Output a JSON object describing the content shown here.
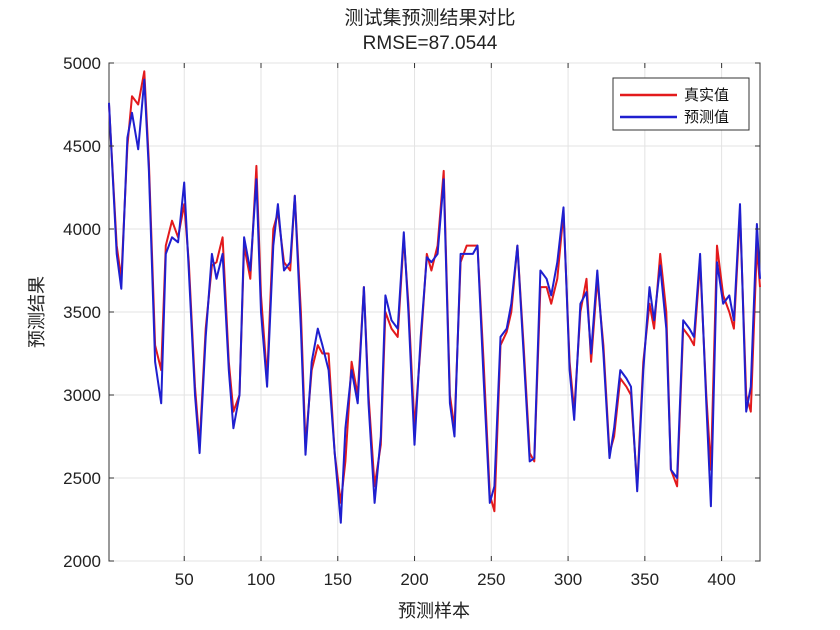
{
  "chart_data": {
    "type": "line",
    "title": "测试集预测结果对比",
    "subtitle": "RMSE=87.0544",
    "xlabel": "预测样本",
    "ylabel": "预测结果",
    "xlim": [
      1,
      425
    ],
    "ylim": [
      2000,
      5000
    ],
    "xticks": [
      50,
      100,
      150,
      200,
      250,
      300,
      350,
      400
    ],
    "yticks": [
      2000,
      2500,
      3000,
      3500,
      4000,
      4500,
      5000
    ],
    "grid": true,
    "legend_position": "top-right",
    "series": [
      {
        "name": "真实值",
        "color": "#e31a1c",
        "x": [
          1,
          6,
          9,
          13,
          16,
          20,
          24,
          27,
          31,
          35,
          38,
          42,
          46,
          50,
          53,
          57,
          60,
          64,
          68,
          71,
          75,
          79,
          82,
          86,
          89,
          93,
          97,
          100,
          104,
          108,
          111,
          115,
          119,
          122,
          126,
          129,
          133,
          137,
          140,
          144,
          148,
          152,
          155,
          159,
          163,
          167,
          170,
          174,
          178,
          181,
          185,
          189,
          193,
          196,
          200,
          204,
          208,
          211,
          215,
          219,
          223,
          226,
          230,
          234,
          238,
          241,
          245,
          249,
          252,
          256,
          260,
          263,
          267,
          271,
          275,
          278,
          282,
          286,
          289,
          293,
          297,
          301,
          304,
          308,
          312,
          315,
          319,
          323,
          327,
          330,
          334,
          338,
          341,
          345,
          349,
          353,
          356,
          360,
          364,
          367,
          371,
          375,
          379,
          382,
          386,
          390,
          393,
          397,
          401,
          405,
          408,
          412,
          416,
          419,
          423,
          425
        ],
        "values": [
          4750,
          3900,
          3700,
          4500,
          4800,
          4750,
          4950,
          4400,
          3300,
          3150,
          3900,
          4050,
          3950,
          4150,
          3800,
          3050,
          2700,
          3400,
          3780,
          3800,
          3950,
          3200,
          2900,
          3000,
          3900,
          3700,
          4380,
          3600,
          3100,
          4000,
          4100,
          3800,
          3750,
          4200,
          3500,
          2700,
          3150,
          3300,
          3250,
          3250,
          2650,
          2350,
          2600,
          3200,
          3000,
          3650,
          3000,
          2450,
          2700,
          3500,
          3400,
          3350,
          3950,
          3550,
          2800,
          3300,
          3850,
          3750,
          3900,
          4350,
          3000,
          2800,
          3800,
          3900,
          3900,
          3900,
          3200,
          2400,
          2300,
          3300,
          3380,
          3500,
          3900,
          3300,
          2650,
          2600,
          3650,
          3650,
          3550,
          3700,
          4100,
          3200,
          2900,
          3500,
          3700,
          3200,
          3700,
          3300,
          2650,
          2750,
          3100,
          3050,
          3000,
          2450,
          3200,
          3550,
          3400,
          3850,
          3500,
          2550,
          2450,
          3400,
          3350,
          3300,
          3800,
          3000,
          2550,
          3900,
          3600,
          3500,
          3400,
          4100,
          3000,
          2900,
          3900,
          3650
        ]
      },
      {
        "name": "预测值",
        "color": "#1f1fcf",
        "x": [
          1,
          6,
          9,
          13,
          16,
          20,
          24,
          27,
          31,
          35,
          38,
          42,
          46,
          50,
          53,
          57,
          60,
          64,
          68,
          71,
          75,
          79,
          82,
          86,
          89,
          93,
          97,
          100,
          104,
          108,
          111,
          115,
          119,
          122,
          126,
          129,
          133,
          137,
          140,
          144,
          148,
          152,
          155,
          159,
          163,
          167,
          170,
          174,
          178,
          181,
          185,
          189,
          193,
          196,
          200,
          204,
          208,
          211,
          215,
          219,
          223,
          226,
          230,
          234,
          238,
          241,
          245,
          249,
          252,
          256,
          260,
          263,
          267,
          271,
          275,
          278,
          282,
          286,
          289,
          293,
          297,
          301,
          304,
          308,
          312,
          315,
          319,
          323,
          327,
          330,
          334,
          338,
          341,
          345,
          349,
          353,
          356,
          360,
          364,
          367,
          371,
          375,
          379,
          382,
          386,
          390,
          393,
          397,
          401,
          405,
          408,
          412,
          416,
          419,
          423,
          425
        ],
        "values": [
          4760,
          3850,
          3640,
          4550,
          4700,
          4480,
          4900,
          4350,
          3200,
          2950,
          3850,
          3950,
          3920,
          4280,
          3750,
          3000,
          2650,
          3350,
          3850,
          3700,
          3850,
          3150,
          2800,
          3000,
          3950,
          3750,
          4300,
          3500,
          3050,
          3900,
          4150,
          3750,
          3800,
          4200,
          3400,
          2640,
          3200,
          3400,
          3300,
          3150,
          2650,
          2230,
          2800,
          3150,
          2950,
          3650,
          2950,
          2350,
          2750,
          3600,
          3450,
          3400,
          3980,
          3500,
          2700,
          3350,
          3830,
          3800,
          3850,
          4300,
          2950,
          2750,
          3850,
          3850,
          3850,
          3900,
          3100,
          2350,
          2450,
          3350,
          3400,
          3550,
          3900,
          3250,
          2600,
          2620,
          3750,
          3700,
          3600,
          3800,
          4130,
          3150,
          2850,
          3550,
          3620,
          3250,
          3750,
          3250,
          2620,
          2800,
          3150,
          3100,
          3050,
          2420,
          3150,
          3650,
          3450,
          3780,
          3400,
          2550,
          2500,
          3450,
          3400,
          3350,
          3850,
          2950,
          2330,
          3800,
          3550,
          3600,
          3450,
          4150,
          2900,
          3050,
          4030,
          3700
        ]
      }
    ]
  }
}
